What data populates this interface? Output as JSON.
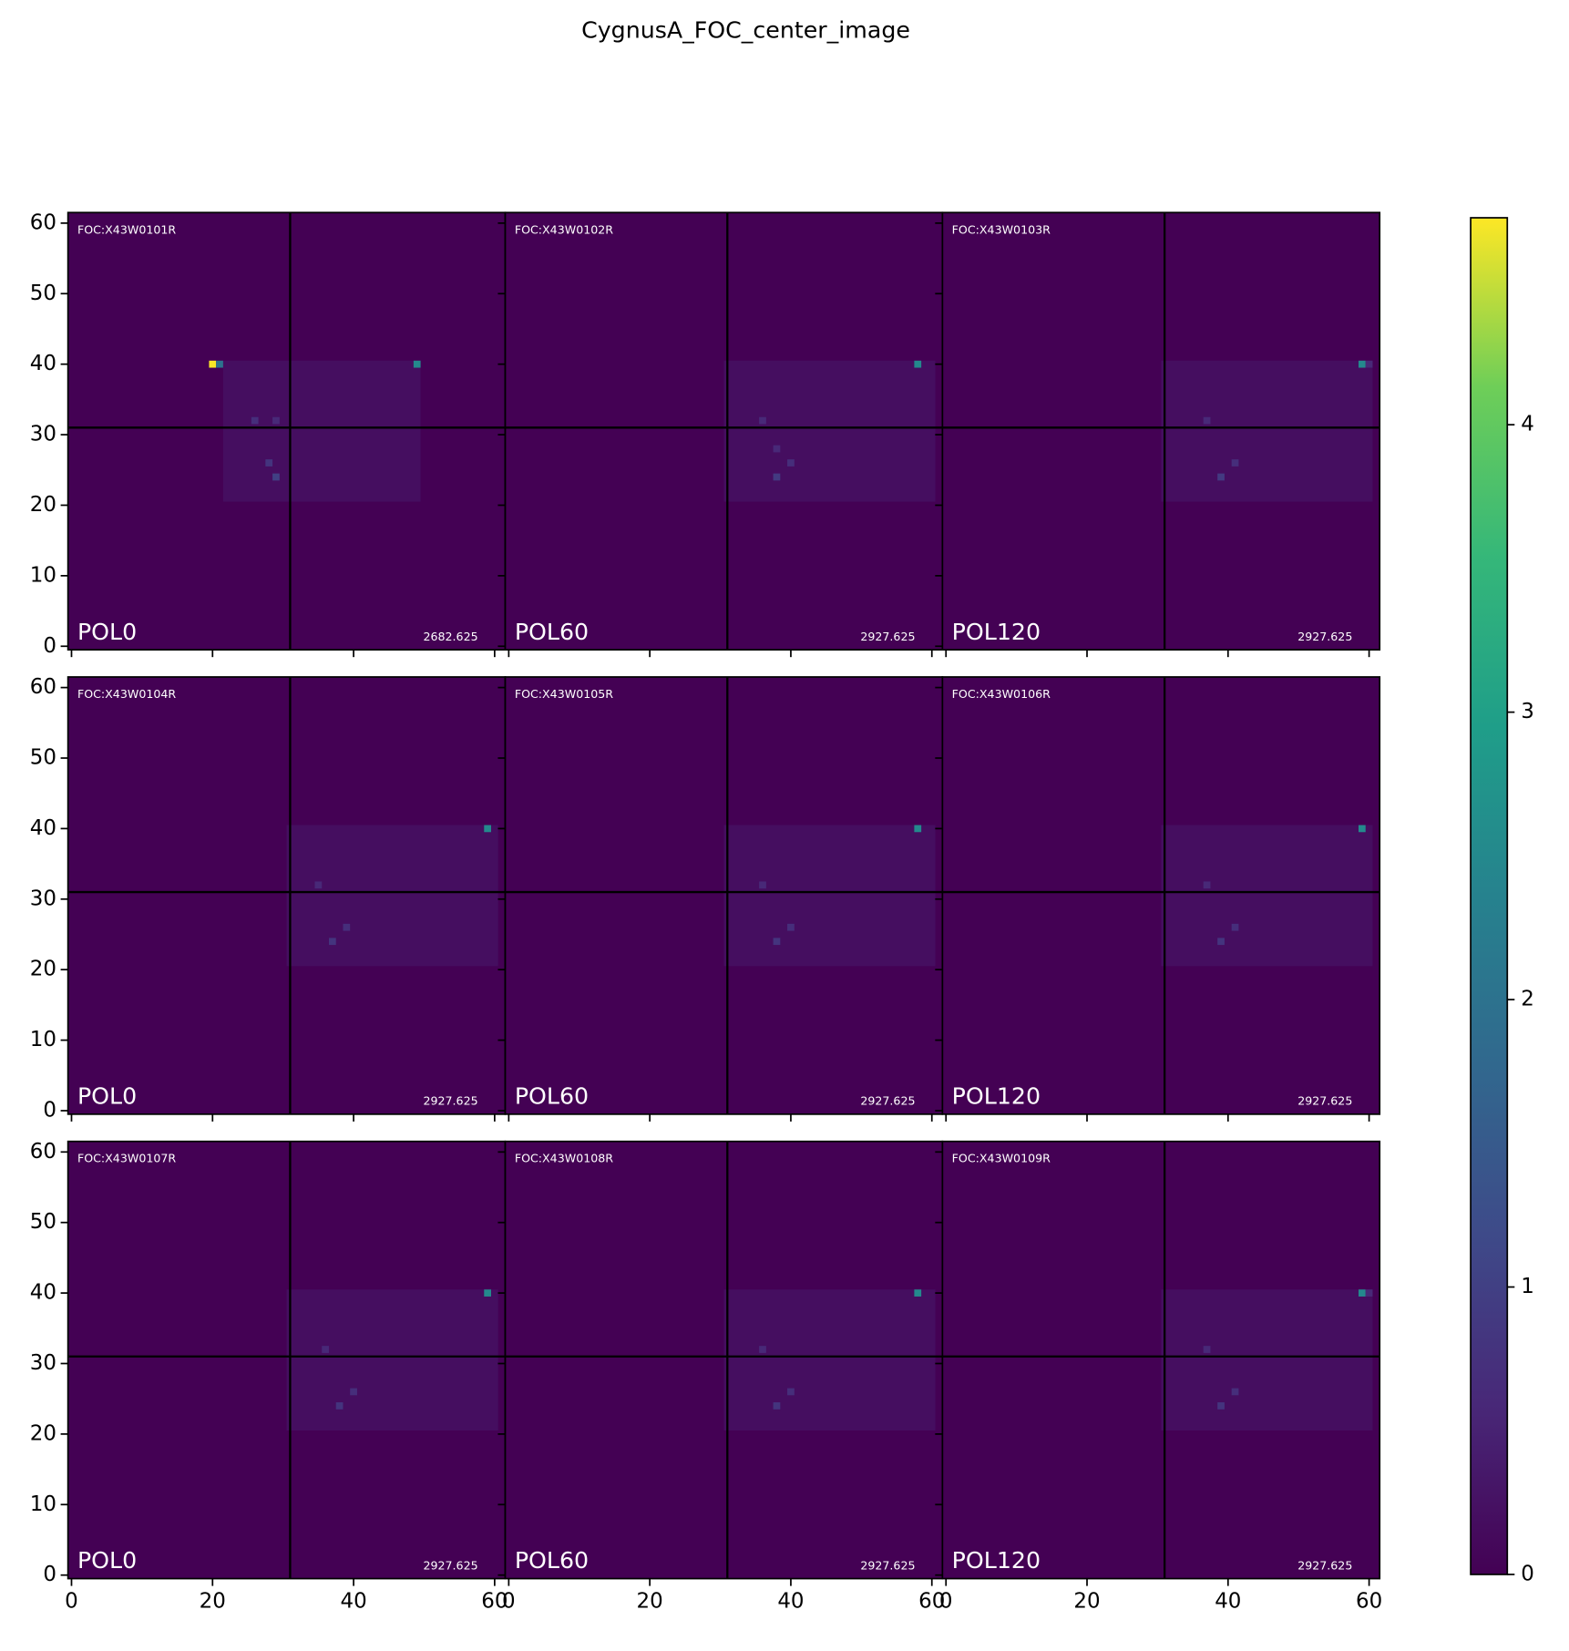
{
  "chart_data": {
    "type": "image_grid",
    "title": "CygnusA_FOC_center_image",
    "colormap": "viridis",
    "xlim": [
      -0.5,
      61.5
    ],
    "ylim": [
      -0.5,
      61.5
    ],
    "xticks": [
      0,
      20,
      40,
      60
    ],
    "yticks": [
      0,
      10,
      20,
      30,
      40,
      50,
      60
    ],
    "clim": [
      0,
      4.72
    ],
    "cticks": [
      0,
      1,
      2,
      3,
      4
    ],
    "crosshair": [
      31,
      31
    ],
    "panels": [
      {
        "name": "FOC:X43W0101R",
        "filter": "POL0",
        "exptime": 2682.625,
        "regions": [
          {
            "x": [
              22,
              50
            ],
            "y": [
              21,
              41
            ],
            "value": 0.2
          }
        ],
        "pixels": [
          [
            20,
            40,
            4.7
          ],
          [
            21,
            40,
            2.0
          ],
          [
            49,
            40,
            2.5
          ],
          [
            29,
            24,
            1.0
          ],
          [
            28,
            26,
            0.8
          ],
          [
            26,
            32,
            0.7
          ],
          [
            29,
            32,
            0.6
          ]
        ]
      },
      {
        "name": "FOC:X43W0102R",
        "filter": "POL60",
        "exptime": 2927.625,
        "regions": [
          {
            "x": [
              31,
              61
            ],
            "y": [
              21,
              41
            ],
            "value": 0.2
          }
        ],
        "pixels": [
          [
            58,
            40,
            2.5
          ],
          [
            38,
            24,
            0.9
          ],
          [
            40,
            26,
            0.7
          ],
          [
            36,
            32,
            0.6
          ],
          [
            38,
            28,
            0.6
          ]
        ]
      },
      {
        "name": "FOC:X43W0103R",
        "filter": "POL120",
        "exptime": 2927.625,
        "regions": [
          {
            "x": [
              31,
              61
            ],
            "y": [
              21,
              41
            ],
            "value": 0.2
          }
        ],
        "pixels": [
          [
            59,
            40,
            2.5
          ],
          [
            60,
            40,
            0.6
          ],
          [
            39,
            24,
            0.9
          ],
          [
            41,
            26,
            0.7
          ],
          [
            37,
            32,
            0.6
          ]
        ]
      },
      {
        "name": "FOC:X43W0104R",
        "filter": "POL0",
        "exptime": 2927.625,
        "regions": [
          {
            "x": [
              31,
              61
            ],
            "y": [
              21,
              41
            ],
            "value": 0.2
          }
        ],
        "pixels": [
          [
            59,
            40,
            2.5
          ],
          [
            37,
            24,
            0.8
          ],
          [
            39,
            26,
            0.7
          ],
          [
            35,
            32,
            0.6
          ]
        ]
      },
      {
        "name": "FOC:X43W0105R",
        "filter": "POL60",
        "exptime": 2927.625,
        "regions": [
          {
            "x": [
              31,
              61
            ],
            "y": [
              21,
              41
            ],
            "value": 0.2
          }
        ],
        "pixels": [
          [
            58,
            40,
            2.5
          ],
          [
            38,
            24,
            0.8
          ],
          [
            40,
            26,
            0.7
          ],
          [
            36,
            32,
            0.6
          ]
        ]
      },
      {
        "name": "FOC:X43W0106R",
        "filter": "POL120",
        "exptime": 2927.625,
        "regions": [
          {
            "x": [
              31,
              61
            ],
            "y": [
              21,
              41
            ],
            "value": 0.2
          }
        ],
        "pixels": [
          [
            59,
            40,
            2.5
          ],
          [
            39,
            24,
            0.8
          ],
          [
            41,
            26,
            0.7
          ],
          [
            37,
            32,
            0.6
          ]
        ]
      },
      {
        "name": "FOC:X43W0107R",
        "filter": "POL0",
        "exptime": 2927.625,
        "regions": [
          {
            "x": [
              31,
              61
            ],
            "y": [
              21,
              41
            ],
            "value": 0.2
          }
        ],
        "pixels": [
          [
            59,
            40,
            2.5
          ],
          [
            38,
            24,
            0.8
          ],
          [
            40,
            26,
            0.7
          ],
          [
            36,
            32,
            0.6
          ]
        ]
      },
      {
        "name": "FOC:X43W0108R",
        "filter": "POL60",
        "exptime": 2927.625,
        "regions": [
          {
            "x": [
              31,
              61
            ],
            "y": [
              21,
              41
            ],
            "value": 0.2
          }
        ],
        "pixels": [
          [
            58,
            40,
            2.5
          ],
          [
            38,
            24,
            0.8
          ],
          [
            40,
            26,
            0.7
          ],
          [
            36,
            32,
            0.6
          ]
        ]
      },
      {
        "name": "FOC:X43W0109R",
        "filter": "POL120",
        "exptime": 2927.625,
        "regions": [
          {
            "x": [
              31,
              61
            ],
            "y": [
              21,
              41
            ],
            "value": 0.2
          }
        ],
        "pixels": [
          [
            59,
            40,
            2.5
          ],
          [
            60,
            40,
            0.6
          ],
          [
            39,
            24,
            0.8
          ],
          [
            41,
            26,
            0.7
          ],
          [
            37,
            32,
            0.6
          ]
        ]
      }
    ]
  }
}
